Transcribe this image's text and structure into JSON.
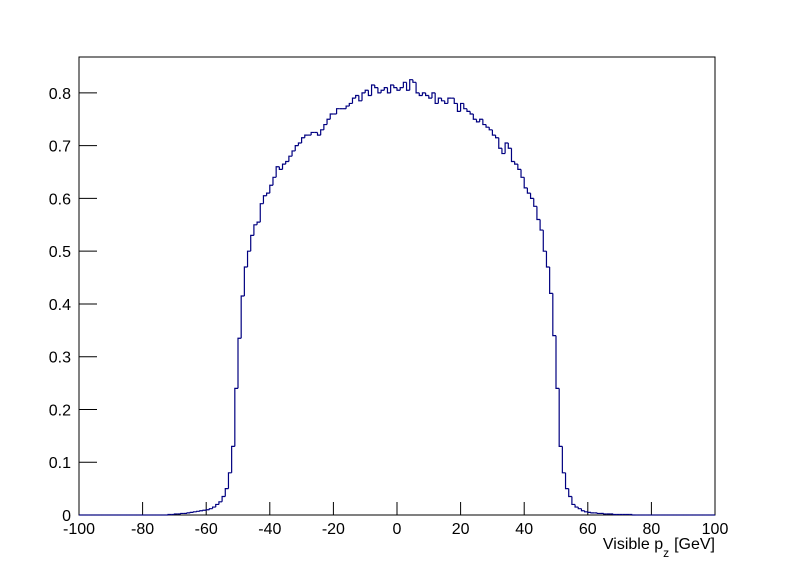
{
  "chart_data": {
    "type": "histogram",
    "x_label": [
      "Visible p",
      "z",
      "[GeV]"
    ],
    "color": "#000080",
    "bins": [
      -100,
      -99,
      -98,
      -97,
      -96,
      -95,
      -94,
      -93,
      -92,
      -91,
      -90,
      -89,
      -88,
      -87,
      -86,
      -85,
      -84,
      -83,
      -82,
      -81,
      -80,
      -79,
      -78,
      -77,
      -76,
      -75,
      -74,
      -73,
      -72,
      -71,
      -70,
      -69,
      -68,
      -67,
      -66,
      -65,
      -64,
      -63,
      -62,
      -61,
      -60,
      -59,
      -58,
      -57,
      -56,
      -55,
      -54,
      -53,
      -52,
      -51,
      -50,
      -49,
      -48,
      -47,
      -46,
      -45,
      -44,
      -43,
      -42,
      -41,
      -40,
      -39,
      -38,
      -37,
      -36,
      -35,
      -34,
      -33,
      -32,
      -31,
      -30,
      -29,
      -28,
      -27,
      -26,
      -25,
      -24,
      -23,
      -22,
      -21,
      -20,
      -19,
      -18,
      -17,
      -16,
      -15,
      -14,
      -13,
      -12,
      -11,
      -10,
      -9,
      -8,
      -7,
      -6,
      -5,
      -4,
      -3,
      -2,
      -1,
      0,
      1,
      2,
      3,
      4,
      5,
      6,
      7,
      8,
      9,
      10,
      11,
      12,
      13,
      14,
      15,
      16,
      17,
      18,
      19,
      20,
      21,
      22,
      23,
      24,
      25,
      26,
      27,
      28,
      29,
      30,
      31,
      32,
      33,
      34,
      35,
      36,
      37,
      38,
      39,
      40,
      41,
      42,
      43,
      44,
      45,
      46,
      47,
      48,
      49,
      50,
      51,
      52,
      53,
      54,
      55,
      56,
      57,
      58,
      59,
      60,
      61,
      62,
      63,
      64,
      65,
      66,
      67,
      68,
      69,
      70,
      71,
      72,
      73,
      74,
      75,
      76,
      77,
      78,
      79,
      80,
      81,
      82,
      83,
      84,
      85,
      86,
      87,
      88,
      89,
      90,
      91,
      92,
      93,
      94,
      95,
      96,
      97,
      98,
      99,
      100
    ],
    "values": [
      0,
      0,
      0,
      0,
      0,
      0,
      0,
      0,
      0,
      0,
      0,
      0,
      0,
      0,
      0,
      0,
      0,
      0,
      0,
      0,
      0,
      0,
      0,
      0,
      0,
      0,
      0,
      0,
      0.001,
      0.001,
      0.002,
      0.002,
      0.003,
      0.003,
      0.004,
      0.005,
      0.006,
      0.007,
      0.008,
      0.009,
      0.01,
      0.012,
      0.015,
      0.02,
      0.025,
      0.035,
      0.05,
      0.08,
      0.13,
      0.24,
      0.335,
      0.415,
      0.47,
      0.5,
      0.53,
      0.55,
      0.555,
      0.59,
      0.605,
      0.61,
      0.625,
      0.64,
      0.66,
      0.655,
      0.665,
      0.67,
      0.68,
      0.69,
      0.7,
      0.705,
      0.715,
      0.72,
      0.72,
      0.725,
      0.725,
      0.72,
      0.73,
      0.74,
      0.75,
      0.76,
      0.76,
      0.77,
      0.77,
      0.77,
      0.775,
      0.78,
      0.79,
      0.795,
      0.785,
      0.8,
      0.805,
      0.795,
      0.815,
      0.81,
      0.8,
      0.805,
      0.81,
      0.8,
      0.815,
      0.81,
      0.805,
      0.81,
      0.82,
      0.805,
      0.825,
      0.82,
      0.8,
      0.795,
      0.8,
      0.795,
      0.79,
      0.8,
      0.78,
      0.79,
      0.785,
      0.78,
      0.79,
      0.79,
      0.78,
      0.765,
      0.78,
      0.77,
      0.765,
      0.76,
      0.75,
      0.745,
      0.75,
      0.74,
      0.735,
      0.73,
      0.72,
      0.715,
      0.695,
      0.685,
      0.705,
      0.695,
      0.67,
      0.665,
      0.655,
      0.64,
      0.62,
      0.61,
      0.6,
      0.585,
      0.56,
      0.54,
      0.5,
      0.47,
      0.42,
      0.34,
      0.24,
      0.13,
      0.08,
      0.05,
      0.035,
      0.02,
      0.015,
      0.012,
      0.008,
      0.006,
      0.005,
      0.004,
      0.004,
      0.003,
      0.003,
      0.002,
      0.002,
      0.002,
      0.001,
      0.001,
      0.001,
      0.001,
      0.001,
      0.001,
      0,
      0,
      0,
      0,
      0,
      0,
      0,
      0,
      0,
      0,
      0,
      0,
      0,
      0,
      0,
      0,
      0,
      0,
      0,
      0,
      0,
      0,
      0,
      0,
      0,
      0
    ],
    "xlim": [
      -100,
      100
    ],
    "xticks": [
      -100,
      -80,
      -60,
      -40,
      -20,
      0,
      20,
      40,
      60,
      80,
      100
    ],
    "ylim": [
      0,
      0.868
    ],
    "yticks": [
      0,
      0.1,
      0.2,
      0.3,
      0.4,
      0.5,
      0.6,
      0.7,
      0.8
    ]
  }
}
